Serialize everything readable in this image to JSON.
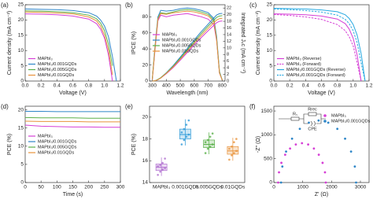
{
  "chart_data": [
    {
      "type": "line",
      "label": "(a)",
      "xlabel": "Voltage (V)",
      "ylabel": "Current density (mA cm⁻²)",
      "xlim": [
        0,
        1.2
      ],
      "xticks": [
        {
          "value": 0,
          "label": "0.0"
        },
        0.2,
        0.4,
        0.6,
        0.8,
        {
          "value": 1,
          "label": "1.0"
        },
        1.2
      ],
      "ylim": [
        0,
        25
      ],
      "yticks": [
        0,
        5,
        10,
        15,
        20,
        25
      ],
      "legend": "lower left",
      "x": [
        0,
        0.2,
        0.4,
        0.6,
        0.8,
        0.9,
        0.95,
        1.0,
        1.05,
        1.1,
        1.15,
        1.2
      ],
      "series": [
        {
          "name": "MAPbI₃",
          "color": "#d63fd6",
          "values": [
            22.0,
            21.9,
            21.7,
            21.3,
            20.3,
            18.8,
            17,
            14,
            8.5,
            0,
            null,
            null
          ]
        },
        {
          "name": "MAPbI₃/0.001GQDs",
          "color": "#2e86c8",
          "values": [
            23.6,
            23.5,
            23.4,
            23.1,
            22.4,
            21.3,
            20,
            18,
            14.5,
            8,
            0,
            null
          ]
        },
        {
          "name": "MAPbI₃/0.005GQDs",
          "color": "#5ab04a",
          "values": [
            23.0,
            22.9,
            22.7,
            22.4,
            21.6,
            20.4,
            19,
            16.5,
            12,
            5,
            null,
            null
          ]
        },
        {
          "name": "MAPbI₃/0.01GQDs",
          "color": "#e8923a",
          "values": [
            22.6,
            22.5,
            22.3,
            22.0,
            21.0,
            19.7,
            18,
            15,
            10,
            2,
            null,
            null
          ]
        }
      ]
    },
    {
      "type": "line",
      "label": "(b)",
      "xlabel": "Wavelength (nm)",
      "ylabel": "IPCE (%)",
      "y2label": "Integrated Jₛc (mA cm⁻²)",
      "xlim": [
        280,
        820
      ],
      "xticks": [
        300,
        400,
        500,
        600,
        700,
        800
      ],
      "ylim": [
        0,
        95
      ],
      "yticks": [
        0,
        20,
        40,
        60,
        80
      ],
      "y2lim": [
        0,
        23
      ],
      "y2ticks": [
        0,
        2,
        4,
        6,
        8,
        10,
        12,
        14,
        16,
        18,
        20,
        22
      ],
      "legend": "center left",
      "x": [
        300,
        320,
        340,
        360,
        400,
        450,
        500,
        550,
        600,
        650,
        700,
        740,
        760,
        780,
        800
      ],
      "series": [
        {
          "name": "MAPbI₃",
          "color": "#d63fd6",
          "values": [
            2,
            40,
            75,
            82,
            80,
            82,
            83,
            84,
            82,
            80,
            77,
            70,
            50,
            10,
            1
          ]
        },
        {
          "name": "MAPbI₃/0.001GQDs",
          "color": "#2e86c8",
          "values": [
            3,
            45,
            80,
            88,
            87,
            88,
            90,
            91,
            90,
            88,
            85,
            78,
            55,
            12,
            1
          ]
        },
        {
          "name": "MAPbI₃/0.005GQDs",
          "color": "#5ab04a",
          "values": [
            3,
            43,
            78,
            85,
            84,
            86,
            88,
            89,
            88,
            86,
            83,
            76,
            52,
            11,
            1
          ]
        },
        {
          "name": "MAPbI₃/0.01GQDs",
          "color": "#e8923a",
          "values": [
            2,
            42,
            77,
            84,
            83,
            85,
            86,
            87,
            86,
            84,
            81,
            74,
            51,
            10,
            1
          ]
        },
        {
          "axis": "y2",
          "color": "#d63fd6",
          "values": [
            0,
            0.1,
            0.4,
            0.9,
            2.2,
            4.1,
            6.3,
            8.6,
            10.9,
            13.1,
            15.2,
            16.8,
            17.6,
            18.0,
            18.1
          ]
        },
        {
          "axis": "y2",
          "color": "#2e86c8",
          "values": [
            0,
            0.1,
            0.5,
            1.0,
            2.5,
            4.7,
            7.2,
            9.8,
            12.4,
            14.9,
            17.2,
            19.0,
            19.9,
            20.3,
            20.4
          ]
        },
        {
          "axis": "y2",
          "color": "#5ab04a",
          "values": [
            0,
            0.1,
            0.5,
            1.0,
            2.4,
            4.5,
            6.9,
            9.4,
            11.9,
            14.3,
            16.6,
            18.3,
            19.2,
            19.6,
            19.7
          ]
        },
        {
          "axis": "y2",
          "color": "#e8923a",
          "values": [
            0,
            0.1,
            0.4,
            0.9,
            2.3,
            4.3,
            6.6,
            9.0,
            11.4,
            13.7,
            15.9,
            17.6,
            18.4,
            18.8,
            18.9
          ]
        }
      ]
    },
    {
      "type": "line",
      "label": "(c)",
      "xlabel": "Voltage (V)",
      "ylabel": "Current density (mA cm⁻²)",
      "xlim": [
        0,
        1.2
      ],
      "xticks": [
        {
          "value": 0,
          "label": "0.0"
        },
        0.2,
        0.4,
        0.6,
        0.8,
        {
          "value": 1,
          "label": "1.0"
        },
        1.2
      ],
      "ylim": [
        0,
        25
      ],
      "yticks": [
        0,
        5,
        10,
        15,
        20,
        25
      ],
      "legend": "lower left",
      "x": [
        0,
        0.2,
        0.4,
        0.6,
        0.8,
        0.9,
        0.95,
        1.0,
        1.05,
        1.1,
        1.15,
        1.2
      ],
      "series": [
        {
          "name": "MAPbI₃ (Reverse)",
          "color": "#d63fd6",
          "values": [
            22.0,
            21.9,
            21.7,
            21.3,
            20.3,
            18.8,
            17,
            14,
            8.5,
            0,
            null,
            null
          ]
        },
        {
          "name": "MAPbI₃ (Forward)",
          "color": "#d63fd6",
          "dash": true,
          "values": [
            21.8,
            21.5,
            21.0,
            20.2,
            18.5,
            16.5,
            14.5,
            11.5,
            6,
            0,
            null,
            null
          ]
        },
        {
          "name": "MAPbI₃/0.001GQDs (Reverse)",
          "color": "#27a9e1",
          "values": [
            23.8,
            23.7,
            23.6,
            23.3,
            22.7,
            21.7,
            20.5,
            18.5,
            15,
            9,
            0,
            null
          ]
        },
        {
          "name": "MAPbI₃/0.001GQDs (Forward)",
          "color": "#27a9e1",
          "dash": true,
          "values": [
            23.6,
            23.4,
            23.1,
            22.6,
            21.6,
            20.2,
            18.8,
            16.5,
            12.5,
            6,
            0,
            null
          ]
        }
      ]
    },
    {
      "type": "line",
      "label": "(d)",
      "xlabel": "Time (s)",
      "ylabel": "PCE (%)",
      "xlim": [
        0,
        300
      ],
      "xticks": [
        0,
        50,
        100,
        150,
        200,
        250,
        300
      ],
      "ylim": [
        0,
        21
      ],
      "yticks": [
        0,
        5,
        10,
        15,
        20
      ],
      "legend": "center left",
      "x": [
        0,
        50,
        100,
        150,
        200,
        250,
        300
      ],
      "series": [
        {
          "name": "MAPbI₃",
          "color": "#d63fd6",
          "values": [
            15.8,
            15.5,
            15.4,
            15.3,
            15.3,
            15.2,
            15.2
          ]
        },
        {
          "name": "MAPbI₃/0.001GQDs",
          "color": "#2e86c8",
          "values": [
            19.6,
            19.6,
            19.5,
            19.5,
            19.5,
            19.5,
            19.5
          ]
        },
        {
          "name": "MAPbI₃/0.005GQDs",
          "color": "#5ab04a",
          "values": [
            17.9,
            17.8,
            17.8,
            17.8,
            17.7,
            17.7,
            17.7
          ]
        },
        {
          "name": "MAPbI₃/0.01GQDs",
          "color": "#e8923a",
          "values": [
            16.9,
            16.8,
            16.8,
            16.8,
            16.7,
            16.7,
            16.7
          ]
        }
      ]
    },
    {
      "type": "box",
      "label": "(e)",
      "ylabel": "PCE (%)",
      "ylim": [
        14,
        21
      ],
      "yticks": [
        14,
        16,
        18,
        20
      ],
      "categories": [
        "MAPbI₃",
        "0.001GQDs",
        "0.005GQDs",
        "0.01GQDs"
      ],
      "colors": [
        "#b06fd0",
        "#2e9ad8",
        "#5ab04a",
        "#e8923a"
      ],
      "boxes": [
        {
          "min": 14.6,
          "q1": 15.1,
          "median": 15.4,
          "q3": 15.7,
          "max": 16.3,
          "points": [
            14.7,
            15.0,
            15.2,
            15.3,
            15.5,
            15.6,
            15.8,
            16.2
          ]
        },
        {
          "min": 17.4,
          "q1": 18.0,
          "median": 18.4,
          "q3": 18.9,
          "max": 19.8,
          "points": [
            17.5,
            17.9,
            18.2,
            18.4,
            18.6,
            18.9,
            19.3,
            19.7
          ]
        },
        {
          "min": 16.6,
          "q1": 17.2,
          "median": 17.5,
          "q3": 17.9,
          "max": 18.6,
          "points": [
            16.7,
            17.1,
            17.3,
            17.5,
            17.7,
            17.9,
            18.2,
            18.5
          ]
        },
        {
          "min": 16.0,
          "q1": 16.6,
          "median": 16.9,
          "q3": 17.3,
          "max": 18.1,
          "points": [
            16.1,
            16.5,
            16.7,
            16.9,
            17.1,
            17.3,
            17.7,
            18.0
          ]
        }
      ]
    },
    {
      "type": "scatter",
      "label": "(f)",
      "xlabel": "Z' (Ω)",
      "ylabel": "-Z'' (Ω)",
      "xlim": [
        0,
        3300
      ],
      "xticks": [
        0,
        1000,
        2000,
        3000
      ],
      "ylim": [
        0,
        1600
      ],
      "yticks": [
        0,
        500,
        1000,
        1500
      ],
      "legend": "upper right",
      "circuit": [
        "Rₛ",
        "Rrec",
        "CPE"
      ],
      "series": [
        {
          "name": "MAPbI₃",
          "color": "#d63fd6",
          "x": [
            1800,
            1772,
            1689,
            1558,
            1388,
            1189,
            975,
            761,
            562,
            392,
            261,
            178,
            150
          ],
          "values": [
            0,
            214,
            413,
            583,
            714,
            797,
            825,
            797,
            714,
            583,
            413,
            214,
            0
          ]
        },
        {
          "name": "MAPbI₃/0.001GQDs",
          "color": "#2e86c8",
          "x": [
            2850,
            2806,
            2676,
            2469,
            2200,
            1886,
            1550,
            1214,
            900,
            631,
            424,
            294,
            250
          ],
          "values": [
            0,
            336,
            650,
            919,
            1126,
            1256,
            1300,
            1256,
            1126,
            919,
            650,
            336,
            0
          ]
        }
      ]
    }
  ]
}
